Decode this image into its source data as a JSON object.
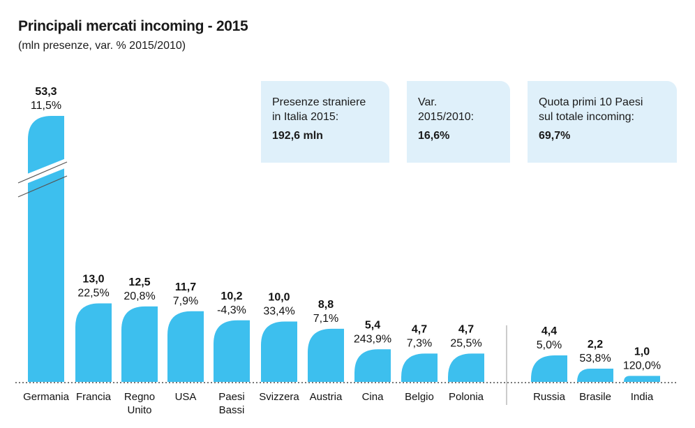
{
  "title": "Principali mercati incoming - 2015",
  "subtitle": "(mln presenze, var. % 2015/2010)",
  "info_boxes": [
    {
      "label": "Presenze straniere\nin Italia 2015:",
      "value": "192,6 mln"
    },
    {
      "label": "Var.\n2015/2010:",
      "value": "16,6%"
    },
    {
      "label": "Quota primi 10 Paesi\nsul totale incoming:",
      "value": "69,7%"
    }
  ],
  "colors": {
    "bar": "#3dbfee",
    "box": "#dff0fa",
    "axis": "#777777"
  },
  "chart_data": {
    "type": "bar",
    "title": "Principali mercati incoming - 2015",
    "subtitle": "(mln presenze, var. % 2015/2010)",
    "unit": "mln presenze",
    "categories": [
      [
        "Germania"
      ],
      [
        "Francia"
      ],
      [
        "Regno",
        "Unito"
      ],
      [
        "USA"
      ],
      [
        "Paesi",
        "Bassi"
      ],
      [
        "Svizzera"
      ],
      [
        "Austria"
      ],
      [
        "Cina"
      ],
      [
        "Belgio"
      ],
      [
        "Polonia"
      ],
      [
        "Russia"
      ],
      [
        "Brasile"
      ],
      [
        "India"
      ]
    ],
    "values": [
      53.3,
      13.0,
      12.5,
      11.7,
      10.2,
      10.0,
      8.8,
      5.4,
      4.7,
      4.7,
      4.4,
      2.2,
      1.0
    ],
    "value_labels": [
      "53,3",
      "13,0",
      "12,5",
      "11,7",
      "10,2",
      "10,0",
      "8,8",
      "5,4",
      "4,7",
      "4,7",
      "4,4",
      "2,2",
      "1,0"
    ],
    "var_labels": [
      "11,5%",
      "22,5%",
      "20,8%",
      "7,9%",
      "-4,3%",
      "33,4%",
      "7,1%",
      "243,9%",
      "7,3%",
      "25,5%",
      "5,0%",
      "53,8%",
      "120,0%"
    ],
    "axis_break": "Germania",
    "group_separator_after": "Polonia"
  }
}
